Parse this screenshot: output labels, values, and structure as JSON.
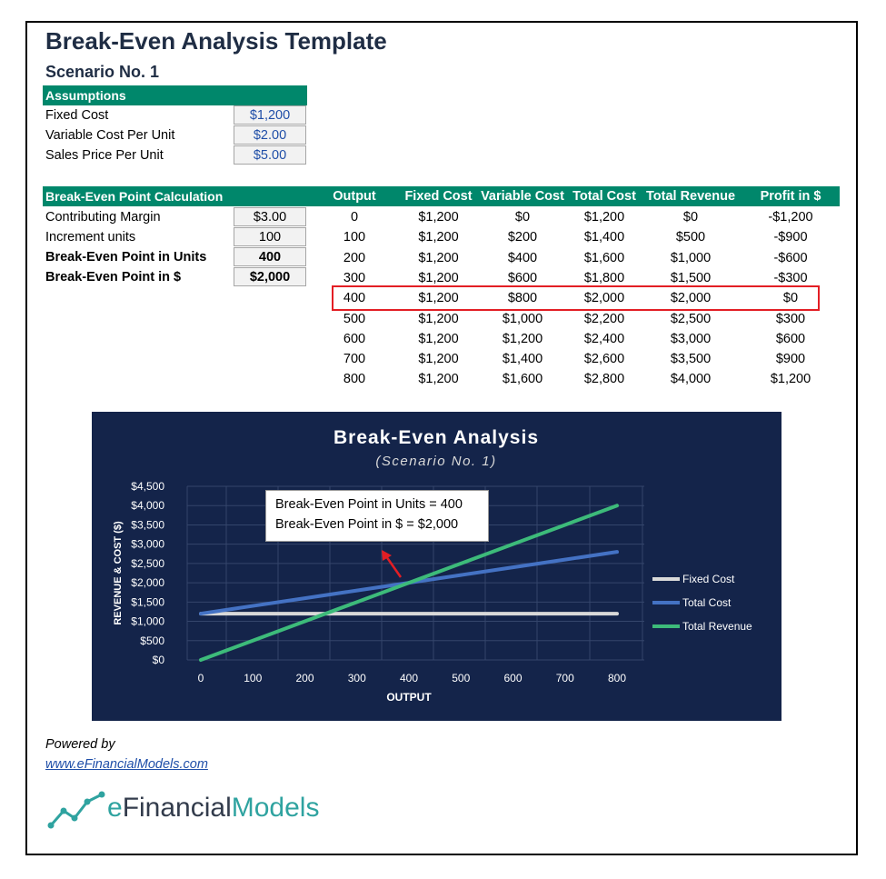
{
  "title": "Break-Even Analysis Template",
  "subtitle": "Scenario No. 1",
  "assumptions": {
    "header": "Assumptions",
    "rows": [
      {
        "label": "Fixed Cost",
        "value": "$1,200"
      },
      {
        "label": "Variable Cost Per Unit",
        "value": "$2.00"
      },
      {
        "label": "Sales Price Per Unit",
        "value": "$5.00"
      }
    ]
  },
  "calculation": {
    "header": "Break-Even Point Calculation",
    "rows": [
      {
        "label": "Contributing Margin",
        "value": "$3.00"
      },
      {
        "label": "Increment units",
        "value": "100"
      },
      {
        "label": "Break-Even Point in Units",
        "value": "400"
      },
      {
        "label": "Break-Even Point in $",
        "value": "$2,000"
      }
    ]
  },
  "table": {
    "headers": [
      "Output",
      "Fixed Cost",
      "Variable Cost",
      "Total Cost",
      "Total Revenue",
      "Profit in $"
    ],
    "rows": [
      [
        "0",
        "$1,200",
        "$0",
        "$1,200",
        "$0",
        "-$1,200"
      ],
      [
        "100",
        "$1,200",
        "$200",
        "$1,400",
        "$500",
        "-$900"
      ],
      [
        "200",
        "$1,200",
        "$400",
        "$1,600",
        "$1,000",
        "-$600"
      ],
      [
        "300",
        "$1,200",
        "$600",
        "$1,800",
        "$1,500",
        "-$300"
      ],
      [
        "400",
        "$1,200",
        "$800",
        "$2,000",
        "$2,000",
        "$0"
      ],
      [
        "500",
        "$1,200",
        "$1,000",
        "$2,200",
        "$2,500",
        "$300"
      ],
      [
        "600",
        "$1,200",
        "$1,200",
        "$2,400",
        "$3,000",
        "$600"
      ],
      [
        "700",
        "$1,200",
        "$1,400",
        "$2,600",
        "$3,500",
        "$900"
      ],
      [
        "800",
        "$1,200",
        "$1,600",
        "$2,800",
        "$4,000",
        "$1,200"
      ]
    ],
    "highlighted_row": 4
  },
  "chart_data": {
    "type": "line",
    "title": "Break-Even Analysis",
    "subtitle": "(Scenario No. 1)",
    "xlabel": "OUTPUT",
    "ylabel": "REVENUE & COST ($)",
    "x": [
      0,
      100,
      200,
      300,
      400,
      500,
      600,
      700,
      800
    ],
    "xticks": [
      "0",
      "100",
      "200",
      "300",
      "400",
      "500",
      "600",
      "700",
      "800"
    ],
    "yticks": [
      "$0",
      "$500",
      "$1,000",
      "$1,500",
      "$2,000",
      "$2,500",
      "$3,000",
      "$3,500",
      "$4,000",
      "$4,500"
    ],
    "ylim": [
      0,
      4500
    ],
    "grid": true,
    "legend_position": "right",
    "series": [
      {
        "name": "Fixed Cost",
        "color": "#d9d9d9",
        "values": [
          1200,
          1200,
          1200,
          1200,
          1200,
          1200,
          1200,
          1200,
          1200
        ]
      },
      {
        "name": "Total Cost",
        "color": "#4472c4",
        "values": [
          1200,
          1400,
          1600,
          1800,
          2000,
          2200,
          2400,
          2600,
          2800
        ]
      },
      {
        "name": "Total Revenue",
        "color": "#3dbb7a",
        "values": [
          0,
          500,
          1000,
          1500,
          2000,
          2500,
          3000,
          3500,
          4000
        ]
      }
    ],
    "annotation": [
      "Break-Even Point in Units = 400",
      "Break-Even Point in $ = $2,000"
    ]
  },
  "footer": {
    "powered_by": "Powered by",
    "link": "www.eFinancialModels.com",
    "logo_e": "e",
    "logo_financial": "Financial",
    "logo_models": "Models"
  },
  "colors": {
    "accent_green": "#00876b",
    "chart_bg": "#14244a",
    "highlight_red": "#e31e24",
    "title_navy": "#1f2d44"
  }
}
